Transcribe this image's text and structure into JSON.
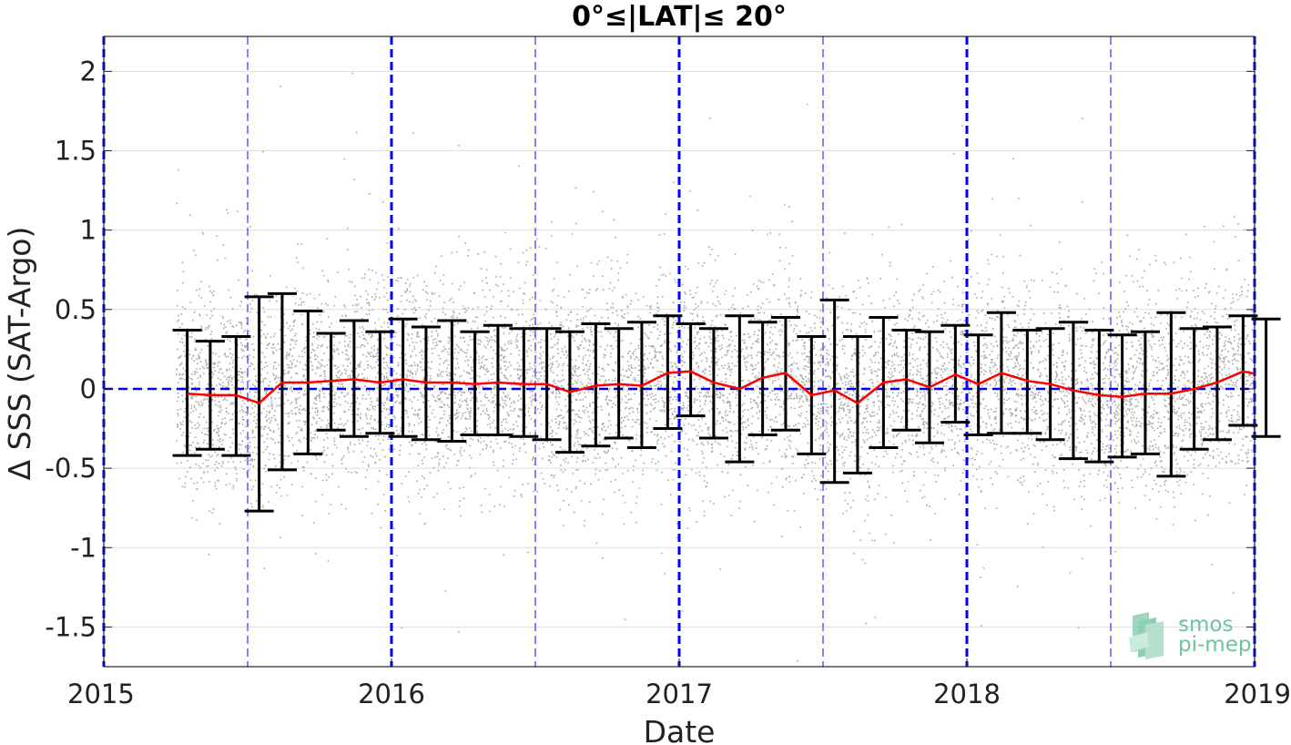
{
  "chart_data": {
    "type": "scatter",
    "title": "0°≤|LAT|≤ 20°",
    "xlabel": "Date",
    "ylabel": "Δ SSS (SAT-Argo)",
    "xlim": [
      2015.0,
      2019.0
    ],
    "ylim": [
      -1.75,
      2.22
    ],
    "x_ticks": [
      "2015",
      "2016",
      "2017",
      "2018",
      "2019"
    ],
    "y_ticks": [
      "2",
      "1.5",
      "1",
      "0.5",
      "0",
      "-0.5",
      "-1",
      "-1.5"
    ],
    "y_tick_values": [
      2,
      1.5,
      1,
      0.5,
      0,
      -0.5,
      -1,
      -1.5
    ],
    "grid": true,
    "zero_line": 0,
    "year_lines": [
      2015.0,
      2016.0,
      2017.0,
      2018.0,
      2019.0
    ],
    "half_year_lines": [
      2015.5,
      2016.5,
      2017.5,
      2018.5
    ],
    "series": [
      {
        "kind": "monthly-mean",
        "x": [
          2015.29,
          2015.37,
          2015.46,
          2015.54,
          2015.62,
          2015.71,
          2015.79,
          2015.87,
          2015.96,
          2016.04,
          2016.12,
          2016.21,
          2016.29,
          2016.37,
          2016.46,
          2016.54,
          2016.62,
          2016.71,
          2016.79,
          2016.87,
          2016.96,
          2017.04,
          2017.12,
          2017.21,
          2017.29,
          2017.37,
          2017.46,
          2017.54,
          2017.62,
          2017.71,
          2017.79,
          2017.87,
          2017.96,
          2018.04,
          2018.12,
          2018.21,
          2018.29,
          2018.37,
          2018.46,
          2018.54,
          2018.62,
          2018.71,
          2018.79,
          2018.87,
          2018.96,
          2019.04
        ],
        "mean": [
          -0.03,
          -0.04,
          -0.04,
          -0.09,
          0.04,
          0.04,
          0.05,
          0.06,
          0.04,
          0.06,
          0.04,
          0.04,
          0.03,
          0.04,
          0.03,
          0.03,
          -0.02,
          0.02,
          0.03,
          0.02,
          0.1,
          0.11,
          0.04,
          0.0,
          0.07,
          0.1,
          -0.04,
          -0.01,
          -0.09,
          0.04,
          0.06,
          0.01,
          0.09,
          0.03,
          0.1,
          0.05,
          0.03,
          -0.01,
          -0.04,
          -0.05,
          -0.03,
          -0.03,
          0.0,
          0.04,
          0.11,
          0.08
        ],
        "upper": [
          0.37,
          0.3,
          0.33,
          0.58,
          0.6,
          0.49,
          0.35,
          0.43,
          0.36,
          0.44,
          0.39,
          0.43,
          0.36,
          0.4,
          0.38,
          0.38,
          0.36,
          0.41,
          0.38,
          0.42,
          0.46,
          0.41,
          0.38,
          0.46,
          0.42,
          0.45,
          0.33,
          0.56,
          0.33,
          0.45,
          0.37,
          0.36,
          0.4,
          0.34,
          0.48,
          0.37,
          0.38,
          0.42,
          0.37,
          0.34,
          0.36,
          0.48,
          0.38,
          0.39,
          0.46,
          0.44
        ],
        "lower": [
          -0.42,
          -0.38,
          -0.42,
          -0.77,
          -0.51,
          -0.41,
          -0.26,
          -0.3,
          -0.28,
          -0.3,
          -0.32,
          -0.33,
          -0.29,
          -0.29,
          -0.3,
          -0.32,
          -0.4,
          -0.36,
          -0.31,
          -0.37,
          -0.25,
          -0.17,
          -0.31,
          -0.46,
          -0.29,
          -0.26,
          -0.41,
          -0.59,
          -0.53,
          -0.37,
          -0.26,
          -0.34,
          -0.21,
          -0.29,
          -0.28,
          -0.28,
          -0.32,
          -0.44,
          -0.46,
          -0.43,
          -0.41,
          -0.55,
          -0.38,
          -0.32,
          -0.23,
          -0.3
        ]
      },
      {
        "kind": "raw-differences",
        "x_range": [
          2015.25,
          2019.0
        ],
        "y_spread": 0.32,
        "count": 9000,
        "color": "#8c8c8c"
      }
    ]
  },
  "colors": {
    "mean_line": "#ff0000",
    "error_bars": "#000000",
    "year_lines": "#0000ee",
    "half_year_lines": "#3333ff",
    "zero_line": "#0000ee",
    "scatter": "#8c8c8c",
    "grid": "#dddddd",
    "logo": "#6fc39b"
  },
  "logo": {
    "line1": "smos",
    "line2": "pi-mep"
  }
}
